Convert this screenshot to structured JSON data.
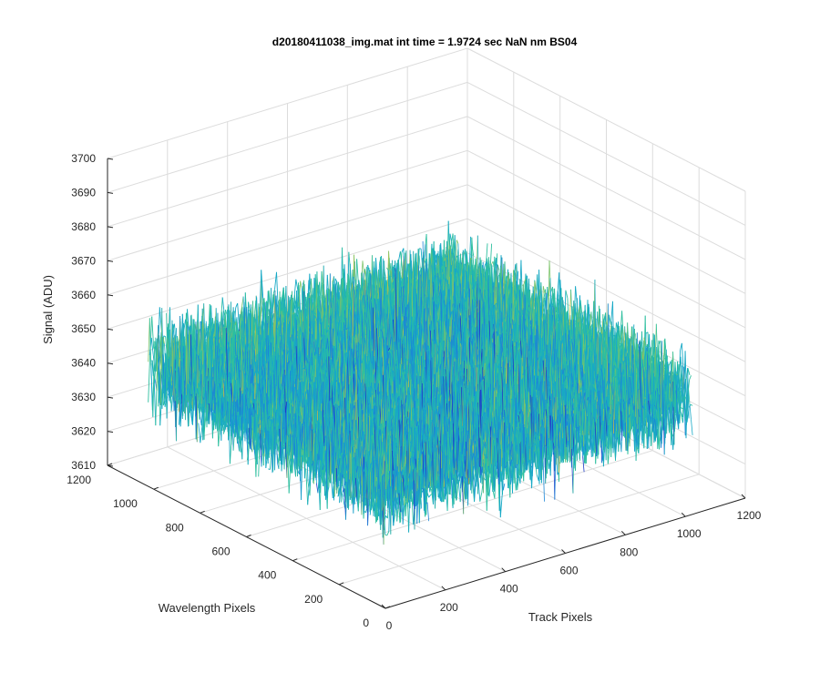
{
  "chart_data": {
    "type": "surface3d",
    "title": "d20180411038_img.mat int time = 1.9724 sec  NaN nm BS04",
    "xlabel": "Track Pixels",
    "ylabel": "Wavelength Pixels",
    "zlabel": "Signal (ADU)",
    "xlim": [
      0,
      1200
    ],
    "ylim": [
      0,
      1200
    ],
    "zlim": [
      3610,
      3700
    ],
    "xticks": [
      "0",
      "200",
      "400",
      "600",
      "800",
      "1000",
      "1200"
    ],
    "yticks": [
      "0",
      "200",
      "400",
      "600",
      "800",
      "1000",
      "1200"
    ],
    "zticks": [
      "3610",
      "3620",
      "3630",
      "3640",
      "3650",
      "3660",
      "3670",
      "3680",
      "3690",
      "3700"
    ],
    "grid": true,
    "colormap": [
      "#1f3cc8",
      "#1c86d6",
      "#18a9c6",
      "#2ebf9f",
      "#7cc46a",
      "#c2bf43"
    ],
    "data_extent": {
      "x": [
        0,
        1024
      ],
      "y": [
        0,
        1024
      ]
    },
    "signal_mean": 3645,
    "signal_range": [
      3615,
      3690
    ]
  }
}
